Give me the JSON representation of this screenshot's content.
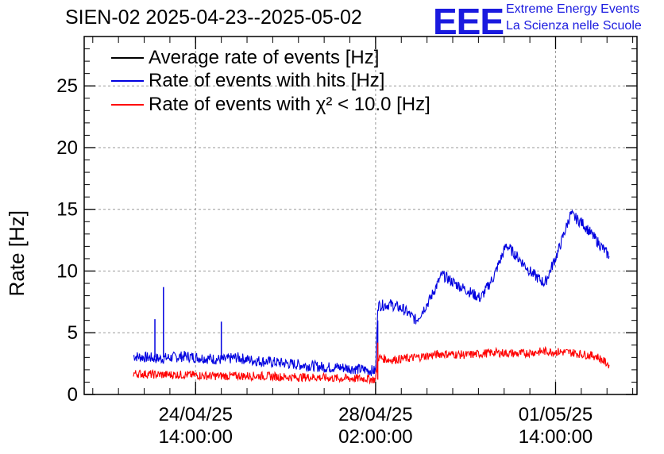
{
  "chart_data": {
    "type": "line",
    "title": "SIEN-02 2025-04-23--2025-05-02",
    "ylabel": "Rate [Hz]",
    "xlabel": "",
    "ylim": [
      0,
      29
    ],
    "grid": true,
    "legend_position": "top-left",
    "y_ticks": [
      "0",
      "5",
      "10",
      "15",
      "20",
      "25"
    ],
    "x_ticks": [
      {
        "line1": "24/04/25",
        "line2": "14:00:00"
      },
      {
        "line1": "28/04/25",
        "line2": "02:00:00"
      },
      {
        "line1": "01/05/25",
        "line2": "14:00:00"
      }
    ],
    "series": [
      {
        "name": "Average rate of events [Hz]",
        "color": "#000000",
        "x": [],
        "y": []
      },
      {
        "name": "Rate of events with hits [Hz]",
        "color": "#0000e0",
        "x": [
          "2025-04-23 09:00",
          "2025-04-23 15:00",
          "2025-04-23 21:00",
          "2025-04-24 03:00",
          "2025-04-24 09:00",
          "2025-04-24 15:00",
          "2025-04-24 21:00",
          "2025-04-25 03:00",
          "2025-04-25 09:00",
          "2025-04-25 15:00",
          "2025-04-25 21:00",
          "2025-04-26 03:00",
          "2025-04-26 09:00",
          "2025-04-26 15:00",
          "2025-04-26 21:00",
          "2025-04-27 03:00",
          "2025-04-27 09:00",
          "2025-04-27 15:00",
          "2025-04-27 21:00",
          "2025-04-28 02:00",
          "2025-04-28 03:00",
          "2025-04-28 09:00",
          "2025-04-28 15:00",
          "2025-04-28 21:00",
          "2025-04-29 03:00",
          "2025-04-29 09:00",
          "2025-04-29 15:00",
          "2025-04-29 21:00",
          "2025-04-30 03:00",
          "2025-04-30 09:00",
          "2025-04-30 15:00",
          "2025-04-30 21:00",
          "2025-05-01 03:00",
          "2025-05-01 09:00",
          "2025-05-01 15:00",
          "2025-05-01 21:00",
          "2025-05-02 03:00",
          "2025-05-02 09:00",
          "2025-05-02 15:00"
        ],
        "y": [
          3.1,
          3.0,
          2.9,
          3.0,
          3.1,
          3.0,
          2.9,
          2.8,
          3.0,
          2.8,
          2.7,
          2.6,
          2.5,
          2.4,
          2.3,
          2.2,
          2.2,
          2.1,
          2.0,
          1.9,
          7.2,
          7.3,
          6.9,
          6.0,
          7.6,
          9.7,
          9.0,
          8.4,
          7.8,
          9.5,
          12.1,
          11.0,
          9.8,
          9.0,
          11.5,
          14.6,
          13.8,
          12.5,
          11.2
        ]
      },
      {
        "name": "Rate of events with χ² < 10.0 [Hz]",
        "color": "#ff0000",
        "x": [
          "2025-04-23 09:00",
          "2025-04-23 21:00",
          "2025-04-24 09:00",
          "2025-04-24 21:00",
          "2025-04-25 09:00",
          "2025-04-25 21:00",
          "2025-04-26 09:00",
          "2025-04-26 21:00",
          "2025-04-27 09:00",
          "2025-04-27 21:00",
          "2025-04-28 02:00",
          "2025-04-28 03:00",
          "2025-04-28 09:00",
          "2025-04-28 21:00",
          "2025-04-29 09:00",
          "2025-04-29 21:00",
          "2025-04-30 09:00",
          "2025-04-30 21:00",
          "2025-05-01 09:00",
          "2025-05-01 21:00",
          "2025-05-02 09:00",
          "2025-05-02 15:00"
        ],
        "y": [
          1.7,
          1.6,
          1.6,
          1.5,
          1.5,
          1.5,
          1.4,
          1.4,
          1.3,
          1.3,
          1.2,
          3.0,
          2.8,
          3.0,
          3.3,
          3.2,
          3.4,
          3.3,
          3.5,
          3.4,
          3.1,
          2.4
        ]
      }
    ]
  }
}
